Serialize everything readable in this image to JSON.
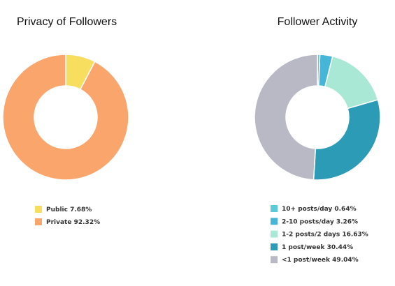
{
  "chart_data": [
    {
      "type": "donut",
      "title": "Privacy of Followers",
      "categories": [
        "Public",
        "Private"
      ],
      "values": [
        7.68,
        92.32
      ],
      "value_labels": [
        "7.68%",
        "92.32%"
      ],
      "colors": [
        "#f8de5e",
        "#f9a56c"
      ]
    },
    {
      "type": "donut",
      "title": "Follower Activity",
      "categories": [
        "10+ posts/day",
        "2-10 posts/day",
        "1-2 posts/2 days",
        "1 post/week",
        "<1 post/week"
      ],
      "values": [
        0.64,
        3.26,
        16.63,
        30.44,
        49.04
      ],
      "value_labels": [
        "0.64%",
        "3.26%",
        "16.63%",
        "30.44%",
        "49.04%"
      ],
      "colors": [
        "#5ccbd8",
        "#45b6d8",
        "#a9e8d5",
        "#2b9bb6",
        "#b9b9c5"
      ]
    }
  ]
}
